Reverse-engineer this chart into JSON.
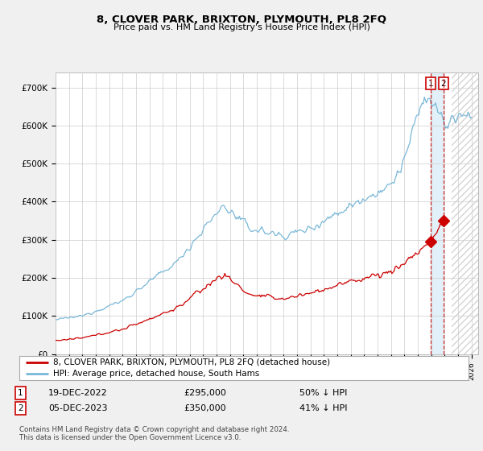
{
  "title": "8, CLOVER PARK, BRIXTON, PLYMOUTH, PL8 2FQ",
  "subtitle": "Price paid vs. HM Land Registry's House Price Index (HPI)",
  "ylabel_ticks": [
    "£0",
    "£100K",
    "£200K",
    "£300K",
    "£400K",
    "£500K",
    "£600K",
    "£700K"
  ],
  "ytick_values": [
    0,
    100000,
    200000,
    300000,
    400000,
    500000,
    600000,
    700000
  ],
  "ylim": [
    0,
    740000
  ],
  "xlim_start": 1995.0,
  "xlim_end": 2026.5,
  "hpi_color": "#7ab8d8",
  "price_color": "#cc0000",
  "transaction1_date": "19-DEC-2022",
  "transaction1_price": "£295,000",
  "transaction1_hpi": "50% ↓ HPI",
  "transaction2_date": "05-DEC-2023",
  "transaction2_price": "£350,000",
  "transaction2_hpi": "41% ↓ HPI",
  "legend_label1": "8, CLOVER PARK, BRIXTON, PLYMOUTH, PL8 2FQ (detached house)",
  "legend_label2": "HPI: Average price, detached house, South Hams",
  "footer1": "Contains HM Land Registry data © Crown copyright and database right 2024.",
  "footer2": "This data is licensed under the Open Government Licence v3.0.",
  "bg_color": "#f0f0f0",
  "plot_bg_color": "#ffffff",
  "grid_color": "#cccccc",
  "vline_color": "#cc0000",
  "marker1_x": 2022.96,
  "marker1_y": 295000,
  "marker2_x": 2023.92,
  "marker2_y": 350000,
  "shade_start": 2022.96,
  "shade_end": 2023.92,
  "hatch_start": 2024.5,
  "hatch_end": 2026.5
}
